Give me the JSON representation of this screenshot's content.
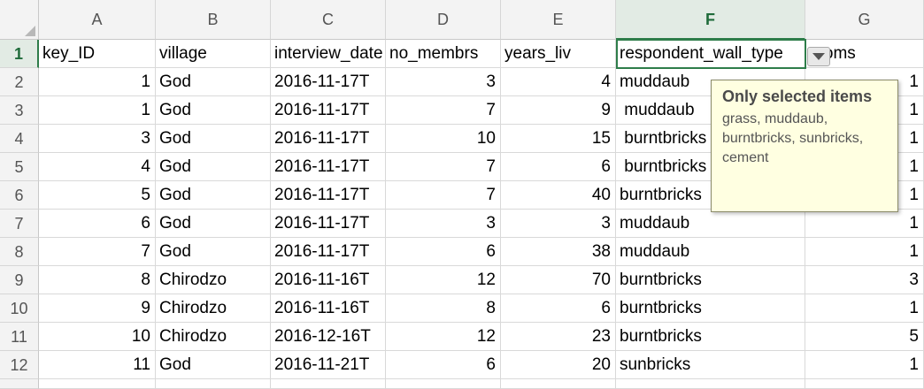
{
  "columns": [
    "A",
    "B",
    "C",
    "D",
    "E",
    "F",
    "G"
  ],
  "row_numbers": [
    "1",
    "2",
    "3",
    "4",
    "5",
    "6",
    "7",
    "8",
    "9",
    "10",
    "11",
    "12"
  ],
  "header_row": [
    "key_ID",
    "village",
    "interview_date",
    "no_membrs",
    "years_liv",
    "respondent_wall_type",
    "rooms"
  ],
  "rows": [
    [
      "1",
      "God",
      "2016-11-17T",
      "3",
      "4",
      "muddaub",
      "1"
    ],
    [
      "1",
      "God",
      "2016-11-17T",
      "7",
      "9",
      " muddaub",
      "1"
    ],
    [
      "3",
      "God",
      "2016-11-17T",
      "10",
      "15",
      " burntbricks",
      "1"
    ],
    [
      "4",
      "God",
      "2016-11-17T",
      "7",
      "6",
      " burntbricks",
      "1"
    ],
    [
      "5",
      "God",
      "2016-11-17T",
      "7",
      "40",
      "burntbricks",
      "1"
    ],
    [
      "6",
      "God",
      "2016-11-17T",
      "3",
      "3",
      "muddaub",
      "1"
    ],
    [
      "7",
      "God",
      "2016-11-17T",
      "6",
      "38",
      "muddaub",
      "1"
    ],
    [
      "8",
      "Chirodzo",
      "2016-11-16T",
      "12",
      "70",
      "burntbricks",
      "3"
    ],
    [
      "9",
      "Chirodzo",
      "2016-11-16T",
      "8",
      "6",
      "burntbricks",
      "1"
    ],
    [
      "10",
      "Chirodzo",
      "2016-12-16T",
      "12",
      "23",
      "burntbricks",
      "5"
    ],
    [
      "11",
      "God",
      "2016-11-21T",
      "6",
      "20",
      "sunbricks",
      "1"
    ]
  ],
  "numeric_columns": [
    0,
    3,
    4,
    6
  ],
  "active_column": "F",
  "active_row": "1",
  "tooltip": {
    "title": "Only selected items",
    "body": "grass, muddaub, burntbricks, sunbricks, cement"
  }
}
